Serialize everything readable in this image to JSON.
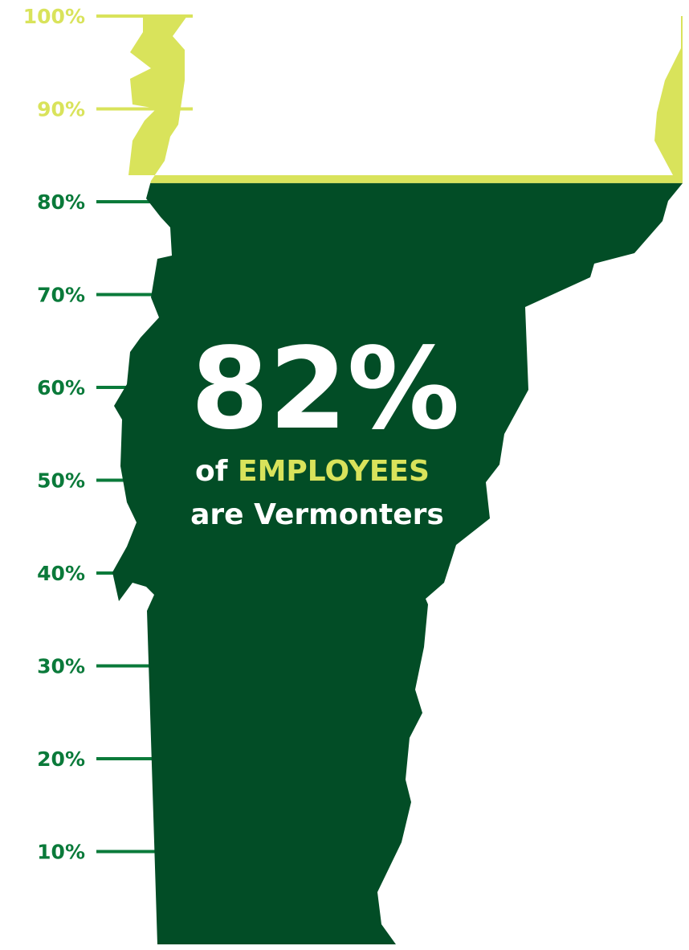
{
  "chart_data": {
    "type": "area",
    "shape": "state of Vermont",
    "value": 82,
    "value_label": "82%",
    "ylim": [
      0,
      100
    ],
    "yticks": [
      10,
      20,
      30,
      40,
      50,
      60,
      70,
      80,
      90,
      100
    ],
    "ytick_labels": [
      "10%",
      "20%",
      "30%",
      "40%",
      "50%",
      "60%",
      "70%",
      "80%",
      "90%",
      "100%"
    ],
    "caption": {
      "line1_prefix": "of",
      "line1_highlight": "EMPLOYEES",
      "line2": "are Vermonters"
    },
    "colors": {
      "filled": "#024d26",
      "remainder": "#d9e35b",
      "filled_ticks": "#0a7a3a",
      "remainder_ticks": "#d9e35b",
      "text": "#ffffff",
      "highlight": "#d9e35b"
    }
  }
}
